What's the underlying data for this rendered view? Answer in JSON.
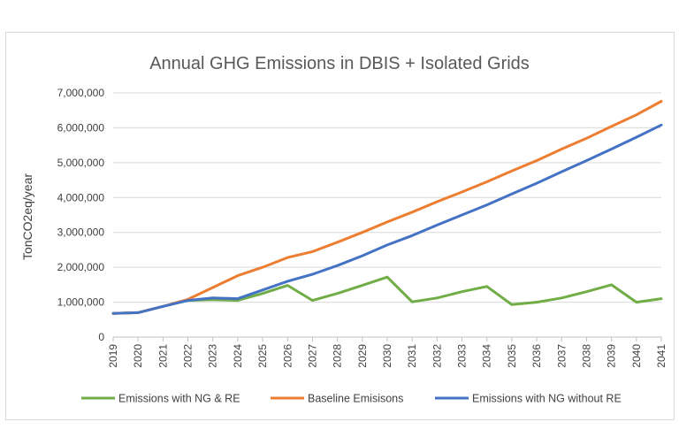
{
  "chart_data": {
    "type": "line",
    "title": "Annual GHG Emissions in DBIS + Isolated Grids",
    "xlabel": "",
    "ylabel": "TonCO2eq/year",
    "ylim": [
      0,
      7000000
    ],
    "y_ticks": [
      "0",
      "1,000,000",
      "2,000,000",
      "3,000,000",
      "4,000,000",
      "5,000,000",
      "6,000,000",
      "7,000,000"
    ],
    "y_tick_values": [
      0,
      1000000,
      2000000,
      3000000,
      4000000,
      5000000,
      6000000,
      7000000
    ],
    "categories": [
      "2019",
      "2020",
      "2021",
      "2022",
      "2023",
      "2024",
      "2025",
      "2026",
      "2027",
      "2028",
      "2029",
      "2030",
      "2031",
      "2032",
      "2033",
      "2034",
      "2035",
      "2036",
      "2037",
      "2038",
      "2039",
      "2040",
      "2041"
    ],
    "grid": true,
    "legend_position": "bottom",
    "series": [
      {
        "name": "Emissions with NG & RE",
        "color": "#70ad47",
        "values": [
          680000,
          700000,
          880000,
          1050000,
          1070000,
          1050000,
          1250000,
          1480000,
          1050000,
          1250000,
          1480000,
          1720000,
          1010000,
          1120000,
          1300000,
          1450000,
          930000,
          1000000,
          1120000,
          1300000,
          1500000,
          1000000,
          1100000
        ]
      },
      {
        "name": "Baseline Emisisons",
        "color": "#ed7d31",
        "values": [
          680000,
          700000,
          880000,
          1080000,
          1420000,
          1760000,
          2000000,
          2280000,
          2450000,
          2720000,
          3000000,
          3300000,
          3580000,
          3880000,
          4160000,
          4450000,
          4760000,
          5060000,
          5390000,
          5700000,
          6040000,
          6370000,
          6760000
        ]
      },
      {
        "name": "Emissions with NG without RE",
        "color": "#4472c4",
        "values": [
          680000,
          700000,
          880000,
          1050000,
          1120000,
          1100000,
          1350000,
          1600000,
          1800000,
          2050000,
          2330000,
          2640000,
          2910000,
          3210000,
          3500000,
          3790000,
          4100000,
          4410000,
          4740000,
          5060000,
          5390000,
          5730000,
          6080000
        ]
      }
    ]
  }
}
